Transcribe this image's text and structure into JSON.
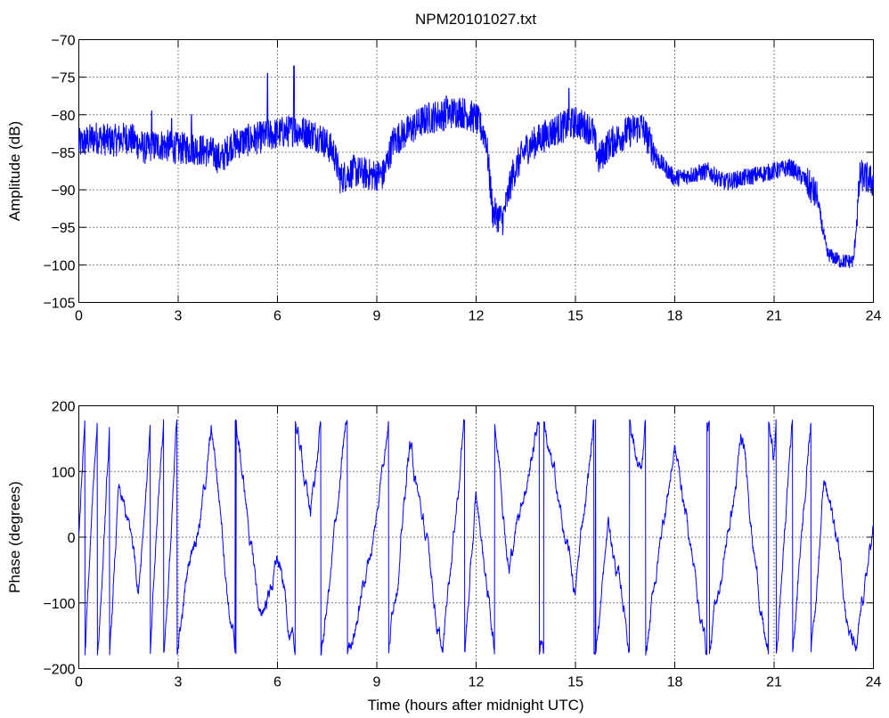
{
  "figure": {
    "title": "NPM20101027.txt",
    "trace_color": "#0000ff"
  },
  "chart_data": [
    {
      "type": "line",
      "title": "NPM20101027.txt",
      "xlabel": "",
      "ylabel": "Amplitude (dB)",
      "xlim": [
        0,
        24
      ],
      "ylim": [
        -105,
        -70
      ],
      "xticks": [
        0,
        3,
        6,
        9,
        12,
        15,
        18,
        21,
        24
      ],
      "yticks": [
        -105,
        -100,
        -95,
        -90,
        -85,
        -80,
        -75,
        -70
      ],
      "xtick_labels": [
        "0",
        "3",
        "6",
        "9",
        "12",
        "15",
        "18",
        "21",
        "24"
      ],
      "ytick_labels": [
        "−105",
        "−100",
        "−95",
        "−90",
        "−85",
        "−80",
        "−75",
        "−70"
      ],
      "grid": true,
      "series": [
        {
          "color": "#0000ff",
          "noise": 2.2,
          "x": [
            0,
            0.5,
            1,
            1.5,
            2,
            2.5,
            3,
            3.5,
            4,
            4.3,
            4.6,
            5,
            5.5,
            6,
            6.5,
            7,
            7.3,
            7.7,
            7.9,
            8.3,
            8.8,
            9.2,
            9.5,
            10,
            10.5,
            11,
            11.5,
            12,
            12.3,
            12.5,
            12.8,
            13.1,
            13.5,
            14,
            14.4,
            15,
            15.5,
            15.7,
            16,
            16.5,
            17,
            17.5,
            18,
            18.5,
            19,
            19.5,
            20,
            20.5,
            21,
            21.5,
            21.9,
            22.3,
            22.6,
            23,
            23.4,
            23.6,
            24
          ],
          "y": [
            -84,
            -83,
            -83.5,
            -83,
            -84.5,
            -84,
            -84.5,
            -84.5,
            -85,
            -86,
            -84,
            -83.5,
            -83,
            -82.5,
            -82,
            -82.5,
            -83,
            -85,
            -88.5,
            -87.5,
            -88,
            -88,
            -83.5,
            -82,
            -80.5,
            -80,
            -79.5,
            -80.5,
            -83,
            -93,
            -94,
            -88,
            -84.5,
            -83,
            -82,
            -81,
            -82,
            -86,
            -84,
            -82.5,
            -81.5,
            -86,
            -88.5,
            -88,
            -87.5,
            -89,
            -88.5,
            -88,
            -87.5,
            -87,
            -88.5,
            -91,
            -98.5,
            -99.5,
            -99.5,
            -88,
            -89
          ]
        }
      ],
      "spikes": [
        {
          "x": 2.2,
          "y": -79.5
        },
        {
          "x": 2.8,
          "y": -80.5
        },
        {
          "x": 3.4,
          "y": -80
        },
        {
          "x": 5.7,
          "y": -74.5
        },
        {
          "x": 6.5,
          "y": -73.5
        },
        {
          "x": 14.8,
          "y": -76.5
        },
        {
          "x": 11.1,
          "y": -77.5
        }
      ]
    },
    {
      "type": "line",
      "title": "",
      "xlabel": "Time (hours after midnight UTC)",
      "ylabel": "Phase (degrees)",
      "xlim": [
        0,
        24
      ],
      "ylim": [
        -200,
        200
      ],
      "xticks": [
        0,
        3,
        6,
        9,
        12,
        15,
        18,
        21,
        24
      ],
      "yticks": [
        -200,
        -100,
        0,
        100,
        200
      ],
      "xtick_labels": [
        "0",
        "3",
        "6",
        "9",
        "12",
        "15",
        "18",
        "21",
        "24"
      ],
      "ytick_labels": [
        "−200",
        "−100",
        "0",
        "100",
        "200"
      ],
      "grid": true,
      "series": [
        {
          "color": "#0000ff",
          "wrap": [
            -180,
            180
          ],
          "x": [
            0,
            24
          ],
          "segments": [
            {
              "t0": 0.0,
              "t1": 1.2,
              "rate": 900
            },
            {
              "t0": 1.2,
              "t1": 1.8,
              "rate": -300
            },
            {
              "t0": 1.8,
              "t1": 3.0,
              "rate": 850
            },
            {
              "t0": 3.0,
              "t1": 4.0,
              "rate": 350
            },
            {
              "t0": 4.0,
              "t1": 5.5,
              "rate": -420
            },
            {
              "t0": 5.5,
              "t1": 6.0,
              "rate": 200
            },
            {
              "t0": 6.0,
              "t1": 7.0,
              "rate": -320
            },
            {
              "t0": 7.0,
              "t1": 8.0,
              "rate": 420
            },
            {
              "t0": 8.0,
              "t1": 9.0,
              "rate": 280
            },
            {
              "t0": 9.0,
              "t1": 10.0,
              "rate": 560
            },
            {
              "t0": 10.0,
              "t1": 11.0,
              "rate": -350
            },
            {
              "t0": 11.0,
              "t1": 12.0,
              "rate": 620
            },
            {
              "t0": 12.0,
              "t1": 13.0,
              "rate": -400
            },
            {
              "t0": 13.0,
              "t1": 14.0,
              "rate": 300
            },
            {
              "t0": 14.0,
              "t1": 15.0,
              "rate": -330
            },
            {
              "t0": 15.0,
              "t1": 16.0,
              "rate": 460
            },
            {
              "t0": 16.0,
              "t1": 17.0,
              "rate": -280
            },
            {
              "t0": 17.0,
              "t1": 18.0,
              "rate": 380
            },
            {
              "t0": 18.0,
              "t1": 19.0,
              "rate": -300
            },
            {
              "t0": 19.0,
              "t1": 20.0,
              "rate": 320
            },
            {
              "t0": 20.0,
              "t1": 21.0,
              "rate": -380
            },
            {
              "t0": 21.0,
              "t1": 22.5,
              "rate": 760
            },
            {
              "t0": 22.5,
              "t1": 23.5,
              "rate": -260
            },
            {
              "t0": 23.5,
              "t1": 24.0,
              "rate": 300
            }
          ]
        }
      ]
    }
  ]
}
